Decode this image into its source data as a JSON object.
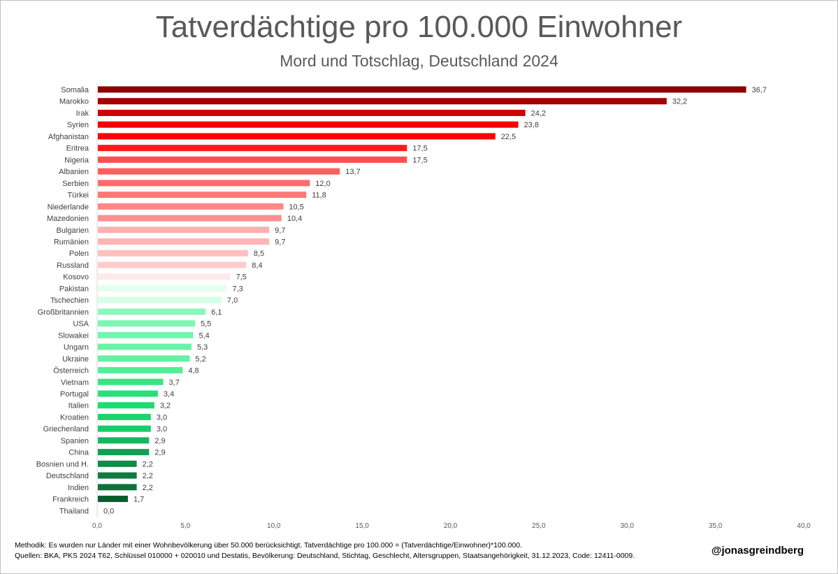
{
  "header": {
    "title": "Tatverdächtige pro 100.000 Einwohner",
    "subtitle": "Mord und Totschlag, Deutschland 2024"
  },
  "footer": {
    "method_note": "Methodik: Es wurden nur Länder mit einer Wohnbevölkerung über 50.000 berücksichtigt. Tatverdächtige pro 100.000 = (Tatverdächtige/Einwohner)*100.000.",
    "sources_note": "Quellen: BKA, PKS 2024 T62, Schlüssel 010000 + 020010 und Destatis, Bevölkerung: Deutschland, Stichtag, Geschlecht, Altersgruppen, Staatsangehörigkeit, 31.12.2023, Code: 12411-0009.",
    "handle": "@jonasgreindberg"
  },
  "chart_data": {
    "type": "bar",
    "orientation": "horizontal",
    "title": "Tatverdächtige pro 100.000 Einwohner",
    "subtitle": "Mord und Totschlag, Deutschland 2024",
    "xlim": [
      0,
      40
    ],
    "x_ticks": [
      "0,0",
      "5,0",
      "10,0",
      "15,0",
      "20,0",
      "25,0",
      "30,0",
      "35,0",
      "40,0"
    ],
    "grid": false,
    "categories": [
      "Somalia",
      "Marokko",
      "Irak",
      "Syrien",
      "Afghanistan",
      "Eritrea",
      "Nigeria",
      "Albanien",
      "Serbien",
      "Türkei",
      "Niederlande",
      "Mazedonien",
      "Bulgarien",
      "Rumänien",
      "Polen",
      "Russland",
      "Kosovo",
      "Pakistan",
      "Tschechien",
      "Großbritannien",
      "USA",
      "Slowakei",
      "Ungarn",
      "Ukraine",
      "Österreich",
      "Vietnam",
      "Portugal",
      "Italien",
      "Kroatien",
      "Griechenland",
      "Spanien",
      "China",
      "Bosnien und H.",
      "Deutschland",
      "Indien",
      "Frankreich",
      "Thailand"
    ],
    "values": [
      36.7,
      32.2,
      24.2,
      23.8,
      22.5,
      17.5,
      17.5,
      13.7,
      12.0,
      11.8,
      10.5,
      10.4,
      9.7,
      9.7,
      8.5,
      8.4,
      7.5,
      7.3,
      7.0,
      6.1,
      5.5,
      5.4,
      5.3,
      5.2,
      4.8,
      3.7,
      3.4,
      3.2,
      3.0,
      3.0,
      2.9,
      2.9,
      2.2,
      2.2,
      2.2,
      1.7,
      0.0
    ],
    "value_labels": [
      "36,7",
      "32,2",
      "24,2",
      "23,8",
      "22,5",
      "17,5",
      "17,5",
      "13,7",
      "12,0",
      "11,8",
      "10,5",
      "10,4",
      "9,7",
      "9,7",
      "8,5",
      "8,4",
      "7,5",
      "7,3",
      "7,0",
      "6,1",
      "5,5",
      "5,4",
      "5,3",
      "5,2",
      "4,8",
      "3,7",
      "3,4",
      "3,2",
      "3,0",
      "3,0",
      "2,9",
      "2,9",
      "2,2",
      "2,2",
      "2,2",
      "1,7",
      "0,0"
    ],
    "colors": [
      "#8b0000",
      "#a30000",
      "#d10000",
      "#f20000",
      "#ff0000",
      "#ff1a1a",
      "#ff5050",
      "#ff5e5e",
      "#ff6b6b",
      "#ff7878",
      "#ff8787",
      "#ff9090",
      "#ffb0b0",
      "#ffb5b5",
      "#ffc0c0",
      "#ffcccc",
      "#ffeaea",
      "#e4fff0",
      "#d6ffe6",
      "#8cf7bc",
      "#7ef5b2",
      "#74f4ad",
      "#6cf2a8",
      "#66f0a3",
      "#55ee98",
      "#33e680",
      "#28e079",
      "#22d973",
      "#1dd36d",
      "#18cc68",
      "#14b85c",
      "#129f52",
      "#118b47",
      "#117a40",
      "#10723b",
      "#0b5a2c",
      "#0b5a2c"
    ]
  }
}
